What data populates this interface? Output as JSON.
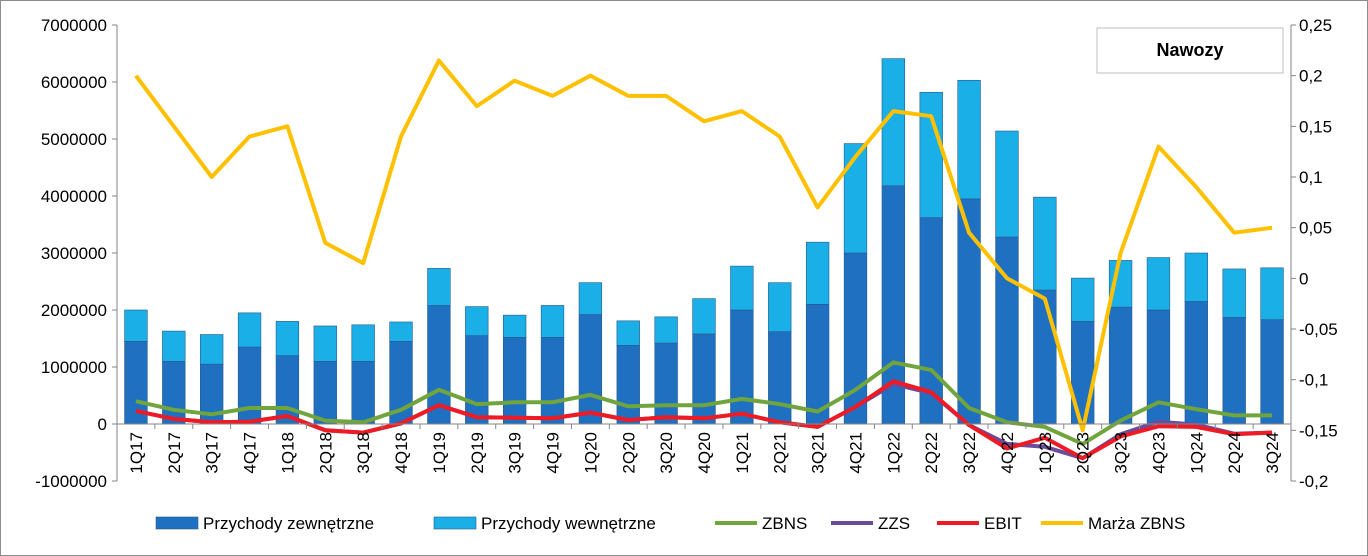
{
  "chart_data": {
    "type": "bar",
    "title": "Nawozy",
    "categories": [
      "1Q17",
      "2Q17",
      "3Q17",
      "4Q17",
      "1Q18",
      "2Q18",
      "3Q18",
      "4Q18",
      "1Q19",
      "2Q19",
      "3Q19",
      "4Q19",
      "1Q20",
      "2Q20",
      "3Q20",
      "4Q20",
      "1Q21",
      "2Q21",
      "3Q21",
      "4Q21",
      "1Q22",
      "2Q22",
      "3Q22",
      "4Q22",
      "1Q23",
      "2Q23",
      "3Q23",
      "4Q23",
      "1Q24",
      "2Q24",
      "3Q24"
    ],
    "y_left": {
      "ylim": [
        -1000000,
        7000000
      ],
      "ticks": [
        "-1000000",
        "0",
        "1000000",
        "2000000",
        "3000000",
        "4000000",
        "5000000",
        "6000000",
        "7000000"
      ]
    },
    "y_right": {
      "ylim": [
        -0.2,
        0.25
      ],
      "ticks": [
        "-0,2",
        "-0,15",
        "-0,1",
        "-0,05",
        "0",
        "0,05",
        "0,1",
        "0,15",
        "0,2",
        "0,25"
      ]
    },
    "grid": false,
    "legend_position": "bottom",
    "bar_series": [
      {
        "name": "Przychody zewnętrzne",
        "color": "#1f70c1",
        "values": [
          1450000,
          1100000,
          1050000,
          1350000,
          1200000,
          1100000,
          1100000,
          1450000,
          2080000,
          1550000,
          1520000,
          1520000,
          1920000,
          1380000,
          1420000,
          1580000,
          2000000,
          1620000,
          2100000,
          3000000,
          4180000,
          3620000,
          3950000,
          3280000,
          2350000,
          1800000,
          2050000,
          2000000,
          2150000,
          1870000,
          1830000
        ]
      },
      {
        "name": "Przychody wewnętrzne",
        "color": "#1aafe6",
        "values": [
          550000,
          530000,
          520000,
          600000,
          600000,
          620000,
          640000,
          340000,
          650000,
          510000,
          390000,
          560000,
          560000,
          430000,
          460000,
          620000,
          770000,
          860000,
          1090000,
          1920000,
          2230000,
          2200000,
          2080000,
          1860000,
          1630000,
          760000,
          820000,
          920000,
          850000,
          850000,
          910000
        ]
      }
    ],
    "line_series": [
      {
        "name": "ZBNS",
        "color": "#70a43c",
        "axis": "left",
        "values": [
          400000,
          250000,
          170000,
          280000,
          280000,
          60000,
          30000,
          250000,
          600000,
          350000,
          380000,
          380000,
          510000,
          310000,
          330000,
          330000,
          440000,
          350000,
          220000,
          600000,
          1080000,
          950000,
          280000,
          30000,
          -50000,
          -350000,
          60000,
          380000,
          260000,
          150000,
          150000
        ]
      },
      {
        "name": "ZZS",
        "color": "#6a4c9c",
        "axis": "left",
        "values": [
          230000,
          90000,
          30000,
          40000,
          140000,
          -110000,
          -150000,
          10000,
          330000,
          120000,
          110000,
          100000,
          200000,
          70000,
          120000,
          100000,
          180000,
          30000,
          -50000,
          300000,
          700000,
          540000,
          -20000,
          -350000,
          -400000,
          -600000,
          -180000,
          40000,
          -10000,
          -170000,
          -150000
        ]
      },
      {
        "name": "EBIT",
        "color": "#ee1b24",
        "axis": "left",
        "values": [
          230000,
          90000,
          30000,
          40000,
          140000,
          -110000,
          -150000,
          10000,
          330000,
          120000,
          110000,
          100000,
          200000,
          70000,
          120000,
          100000,
          180000,
          30000,
          -50000,
          300000,
          750000,
          560000,
          -20000,
          -430000,
          -240000,
          -600000,
          -220000,
          -40000,
          -50000,
          -180000,
          -150000
        ]
      },
      {
        "name": "Marża ZBNS",
        "color": "#ffc000",
        "axis": "right",
        "values": [
          0.2,
          0.15,
          0.1,
          0.14,
          0.15,
          0.035,
          0.015,
          0.14,
          0.215,
          0.17,
          0.195,
          0.18,
          0.2,
          0.18,
          0.18,
          0.155,
          0.165,
          0.14,
          0.07,
          0.12,
          0.165,
          0.16,
          0.045,
          0.0,
          -0.02,
          -0.15,
          0.025,
          0.13,
          0.09,
          0.045,
          0.05
        ]
      }
    ]
  }
}
